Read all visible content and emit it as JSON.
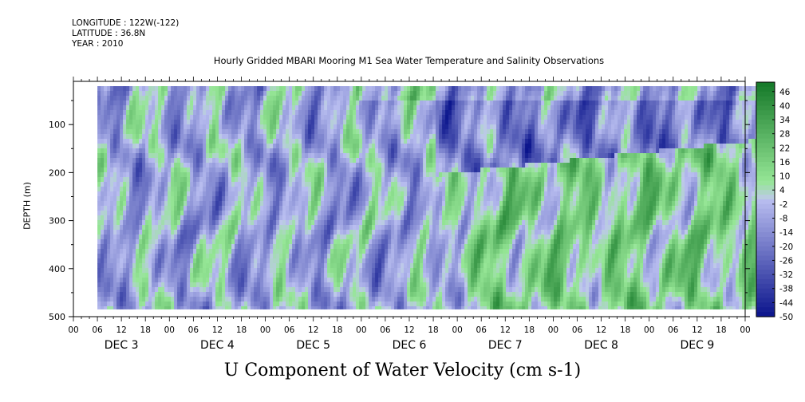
{
  "header": {
    "longitude": "LONGITUDE : 122W(-122)",
    "latitude": "LATITUDE : 36.8N",
    "year": "YEAR : 2010"
  },
  "chart_data": {
    "type": "heatmap",
    "title": "Hourly Gridded MBARI Mooring M1 Sea Water Temperature and Salinity Observations",
    "xlabel": "U Component of Water Velocity (cm s-1)",
    "ylabel": "DEPTH (m)",
    "y_ticks": [
      "100",
      "200",
      "300",
      "400",
      "500"
    ],
    "y_tick_values": [
      100,
      200,
      300,
      400,
      500
    ],
    "ylim": [
      500,
      10
    ],
    "hour_ticks": [
      "00",
      "06",
      "12",
      "18",
      "00",
      "06",
      "12",
      "18",
      "00",
      "06",
      "12",
      "18",
      "00",
      "06",
      "12",
      "18",
      "00",
      "06",
      "12",
      "18",
      "00",
      "06",
      "12",
      "18",
      "00",
      "06",
      "12",
      "18",
      "00"
    ],
    "days": [
      "DEC  3",
      "DEC  4",
      "DEC  5",
      "DEC  6",
      "DEC  7",
      "DEC  8",
      "DEC  9"
    ],
    "colorbar": {
      "labels": [
        "46",
        "40",
        "34",
        "28",
        "22",
        "16",
        "10",
        "4",
        "-2",
        "-8",
        "-14",
        "-20",
        "-26",
        "-32",
        "-38",
        "-44",
        "-50"
      ],
      "min": -50,
      "max": 50
    },
    "data_extent": {
      "time_hours_start": 6,
      "time_hours_end": 174,
      "depth_top": 20,
      "depth_bottom": 485
    },
    "field_notes": "Alternating near-zero values; mostly negative (blue) in first half, strong positive (green) band deeper than ~170 m after Dec 7."
  }
}
